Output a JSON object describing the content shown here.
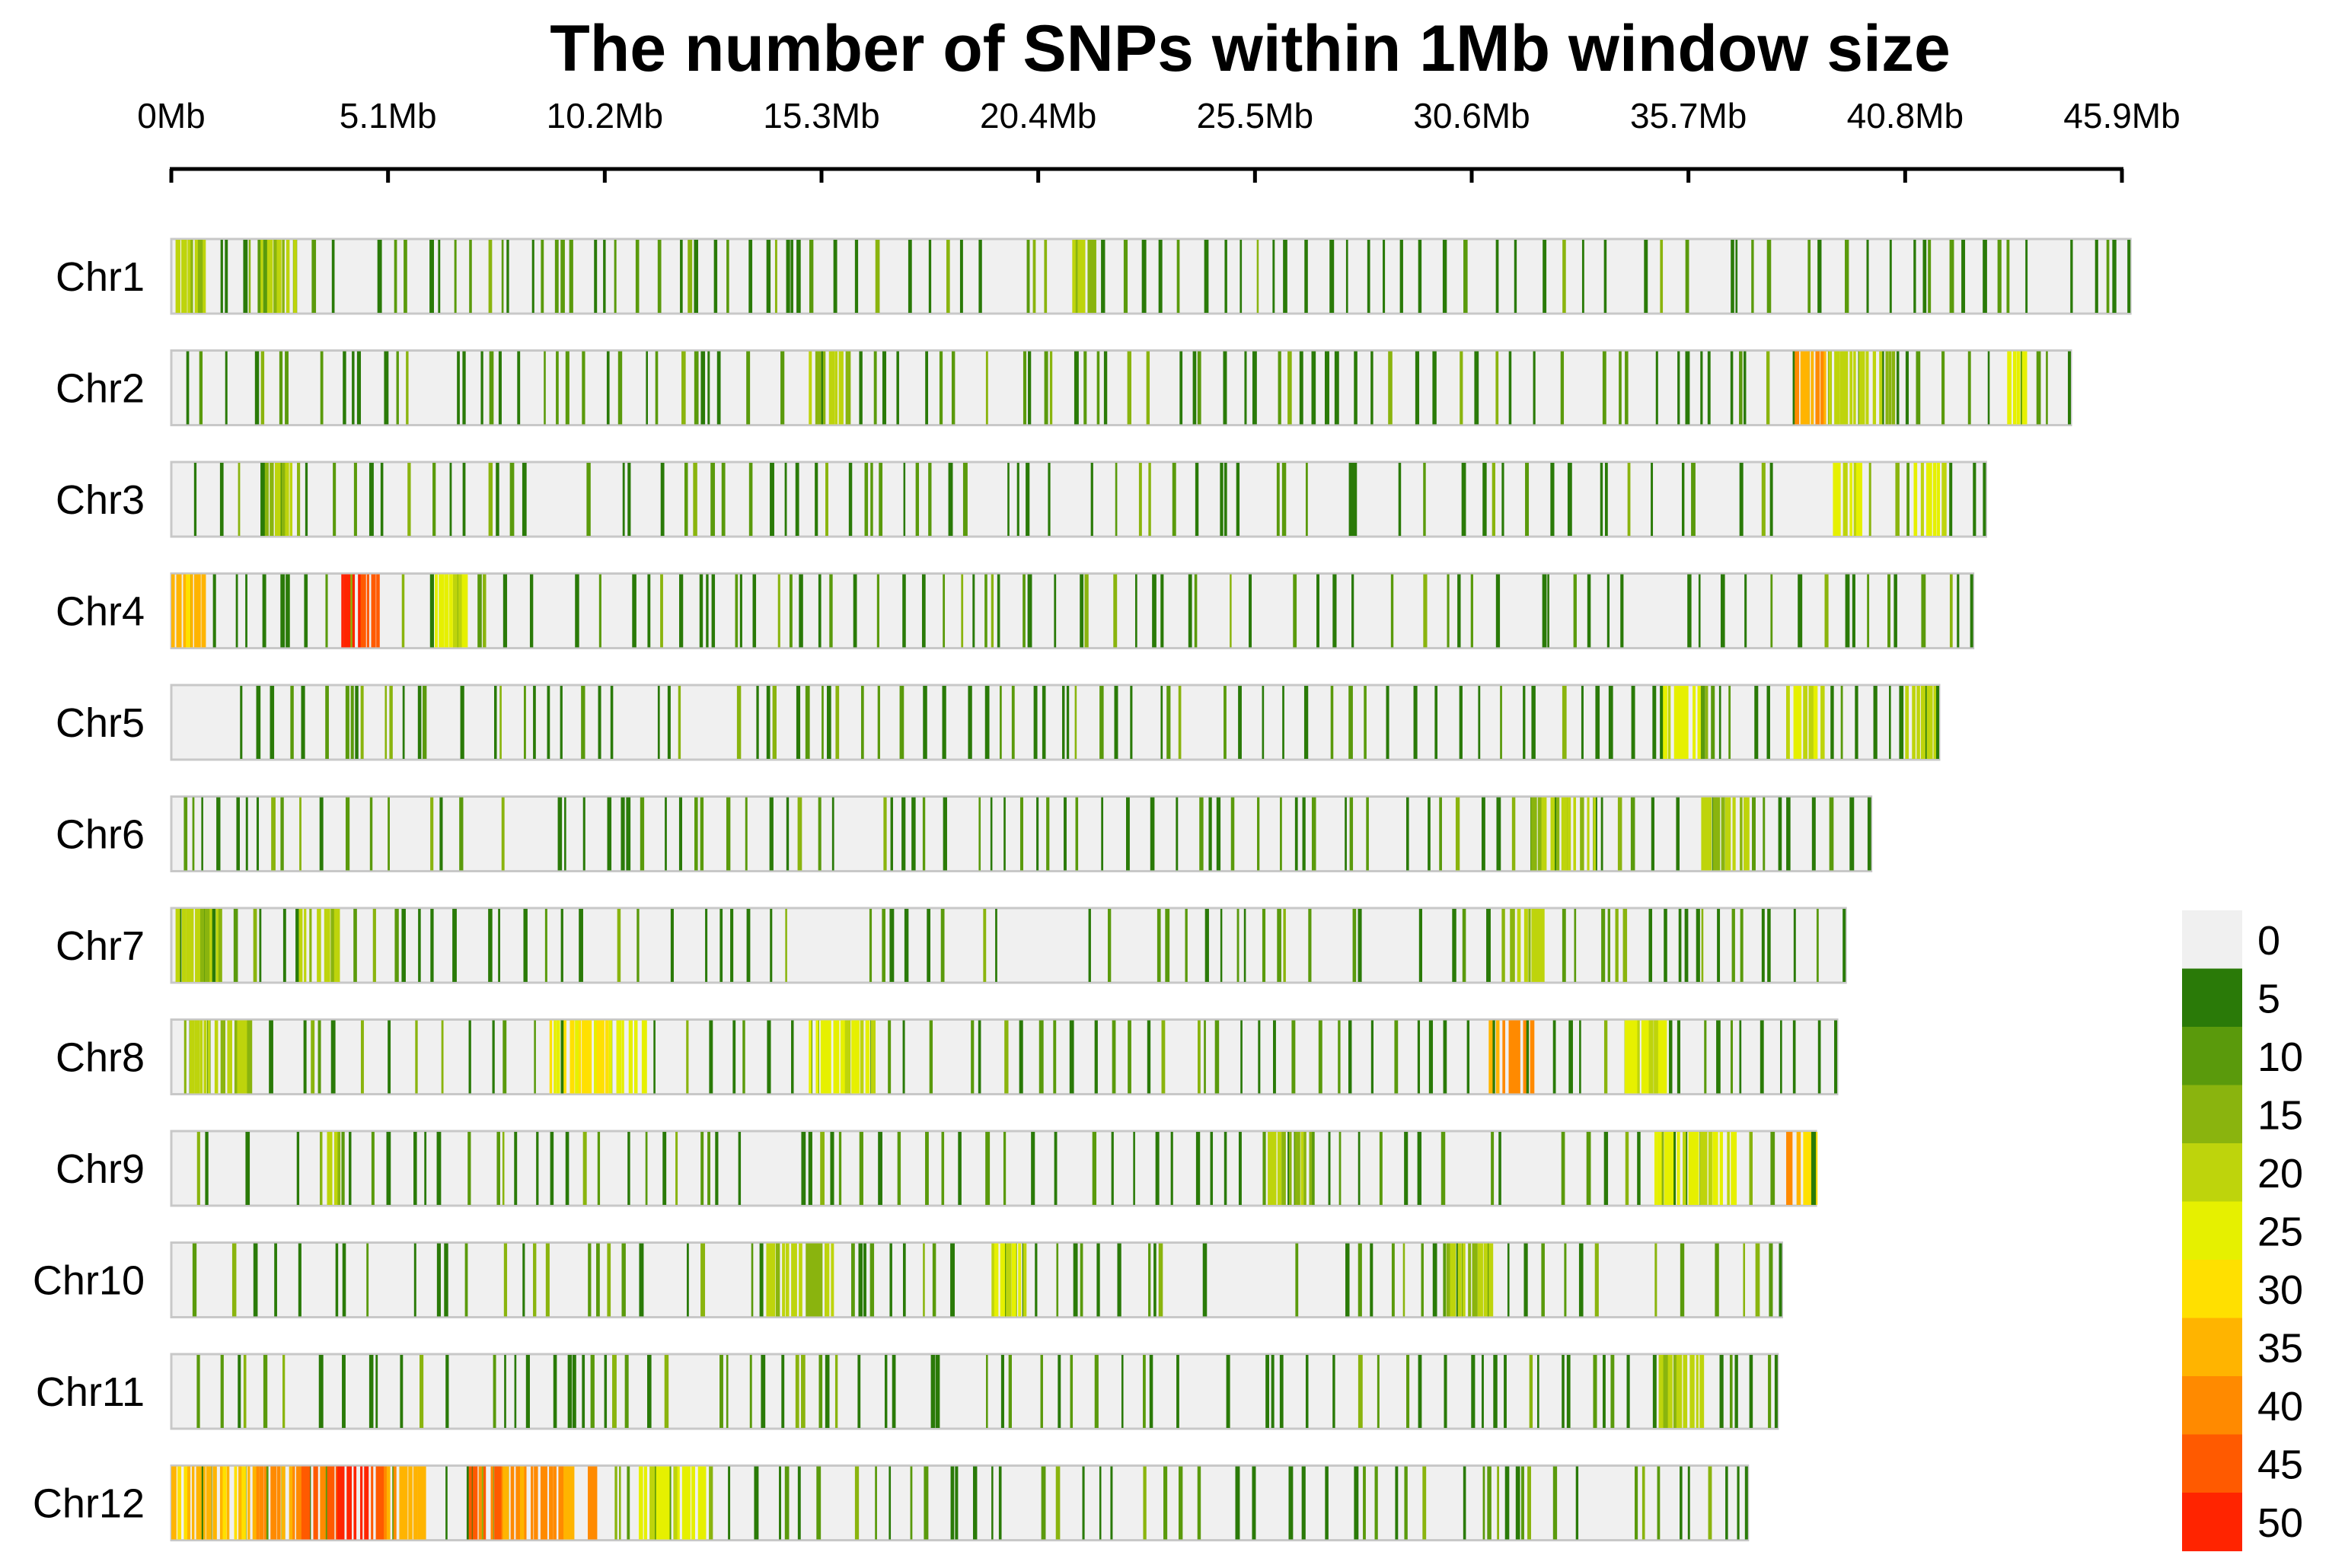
{
  "chart_data": {
    "type": "heatmap",
    "title": "The number of SNPs within 1Mb window size",
    "xlabel": "",
    "ylabel": "",
    "x_axis": {
      "range_mb": [
        0,
        45.9
      ],
      "tick_values_mb": [
        0,
        5.1,
        10.2,
        15.3,
        20.4,
        25.5,
        30.6,
        35.7,
        40.8,
        45.9
      ],
      "tick_labels": [
        "0Mb",
        "5.1Mb",
        "10.2Mb",
        "15.3Mb",
        "20.4Mb",
        "25.5Mb",
        "30.6Mb",
        "35.7Mb",
        "40.8Mb",
        "45.9Mb"
      ],
      "position": "top"
    },
    "chromosomes": [
      {
        "name": "Chr1",
        "length_mb": 46.1,
        "seed": 11,
        "hotspots": [
          {
            "start": 0.1,
            "end": 0.8,
            "level": 4
          },
          {
            "start": 2.1,
            "end": 2.9,
            "level": 4
          },
          {
            "start": 21.2,
            "end": 21.7,
            "level": 4
          }
        ]
      },
      {
        "name": "Chr2",
        "length_mb": 44.7,
        "seed": 23,
        "hotspots": [
          {
            "start": 15.0,
            "end": 16.0,
            "level": 4
          },
          {
            "start": 38.2,
            "end": 38.9,
            "level": 8
          },
          {
            "start": 39.0,
            "end": 40.5,
            "level": 4
          },
          {
            "start": 43.2,
            "end": 43.6,
            "level": 5
          }
        ]
      },
      {
        "name": "Chr3",
        "length_mb": 42.7,
        "seed": 37,
        "hotspots": [
          {
            "start": 2.2,
            "end": 3.0,
            "level": 4
          },
          {
            "start": 39.1,
            "end": 39.8,
            "level": 5
          },
          {
            "start": 41.0,
            "end": 41.8,
            "level": 5
          }
        ]
      },
      {
        "name": "Chr4",
        "length_mb": 42.4,
        "seed": 41,
        "hotspots": [
          {
            "start": 0.0,
            "end": 0.8,
            "level": 7
          },
          {
            "start": 4.0,
            "end": 4.6,
            "level": 10
          },
          {
            "start": 4.6,
            "end": 4.95,
            "level": 9
          },
          {
            "start": 6.2,
            "end": 7.0,
            "level": 5
          }
        ]
      },
      {
        "name": "Chr5",
        "length_mb": 41.6,
        "seed": 53,
        "hotspots": [
          {
            "start": 35.1,
            "end": 36.0,
            "level": 5
          },
          {
            "start": 38.0,
            "end": 38.9,
            "level": 5
          },
          {
            "start": 40.8,
            "end": 41.5,
            "level": 4
          }
        ]
      },
      {
        "name": "Chr6",
        "length_mb": 40.0,
        "seed": 67,
        "hotspots": [
          {
            "start": 32.0,
            "end": 33.5,
            "level": 4
          },
          {
            "start": 36.0,
            "end": 37.0,
            "level": 4
          }
        ]
      },
      {
        "name": "Chr7",
        "length_mb": 39.4,
        "seed": 71,
        "hotspots": [
          {
            "start": 0.1,
            "end": 1.2,
            "level": 4
          },
          {
            "start": 3.0,
            "end": 4.0,
            "level": 4
          },
          {
            "start": 31.5,
            "end": 32.3,
            "level": 4
          }
        ]
      },
      {
        "name": "Chr8",
        "length_mb": 39.2,
        "seed": 83,
        "hotspots": [
          {
            "start": 0.3,
            "end": 1.9,
            "level": 4
          },
          {
            "start": 8.9,
            "end": 10.6,
            "level": 6
          },
          {
            "start": 10.6,
            "end": 11.1,
            "level": 5
          },
          {
            "start": 15.0,
            "end": 16.5,
            "level": 5
          },
          {
            "start": 31.0,
            "end": 32.0,
            "level": 8
          },
          {
            "start": 34.2,
            "end": 35.1,
            "level": 5
          }
        ]
      },
      {
        "name": "Chr9",
        "length_mb": 38.7,
        "seed": 97,
        "hotspots": [
          {
            "start": 3.5,
            "end": 4.0,
            "level": 4
          },
          {
            "start": 25.8,
            "end": 26.8,
            "level": 4
          },
          {
            "start": 34.9,
            "end": 35.6,
            "level": 5
          },
          {
            "start": 35.7,
            "end": 36.8,
            "level": 5
          },
          {
            "start": 38.0,
            "end": 38.4,
            "level": 8
          },
          {
            "start": 38.4,
            "end": 38.7,
            "level": 7
          }
        ]
      },
      {
        "name": "Chr10",
        "length_mb": 37.9,
        "seed": 101,
        "hotspots": [
          {
            "start": 14.0,
            "end": 15.6,
            "level": 4
          },
          {
            "start": 19.3,
            "end": 20.1,
            "level": 5
          },
          {
            "start": 30.0,
            "end": 31.0,
            "level": 4
          }
        ]
      },
      {
        "name": "Chr11",
        "length_mb": 37.8,
        "seed": 113,
        "hotspots": [
          {
            "start": 35.0,
            "end": 36.0,
            "level": 4
          }
        ]
      },
      {
        "name": "Chr12",
        "length_mb": 37.1,
        "seed": 127,
        "hotspots": [
          {
            "start": 0.0,
            "end": 2.0,
            "level": 7
          },
          {
            "start": 2.0,
            "end": 3.0,
            "level": 8
          },
          {
            "start": 3.0,
            "end": 3.9,
            "level": 9
          },
          {
            "start": 3.9,
            "end": 5.0,
            "level": 10
          },
          {
            "start": 5.0,
            "end": 5.8,
            "level": 8
          },
          {
            "start": 5.8,
            "end": 5.95,
            "level": 7
          },
          {
            "start": 7.0,
            "end": 7.8,
            "level": 9
          },
          {
            "start": 7.8,
            "end": 9.5,
            "level": 8
          },
          {
            "start": 9.8,
            "end": 10.0,
            "level": 8
          },
          {
            "start": 11.0,
            "end": 12.5,
            "level": 5
          }
        ]
      }
    ],
    "legend": {
      "position": "bottom-right",
      "levels": [
        {
          "label": "0",
          "color": "#f0f0f0"
        },
        {
          "label": "5",
          "color": "#2a7a08"
        },
        {
          "label": "10",
          "color": "#5a9a0c"
        },
        {
          "label": "15",
          "color": "#8ab40e"
        },
        {
          "label": "20",
          "color": "#bed40c"
        },
        {
          "label": "25",
          "color": "#e6f000"
        },
        {
          "label": "30",
          "color": "#ffe000"
        },
        {
          "label": "35",
          "color": "#ffb400"
        },
        {
          "label": "40",
          "color": "#ff8a00"
        },
        {
          "label": "45",
          "color": "#ff5a00"
        },
        {
          "label": "50",
          "color": "#ff2400"
        }
      ]
    }
  }
}
